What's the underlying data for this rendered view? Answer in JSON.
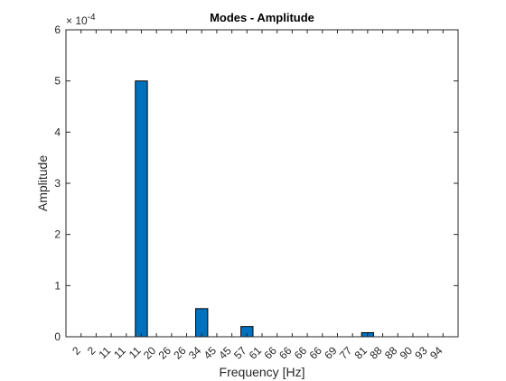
{
  "chart_data": {
    "type": "bar",
    "title": "Modes - Amplitude",
    "xlabel": "Frequency [Hz]",
    "ylabel": "Amplitude",
    "exponent_label": "× 10",
    "exponent_power": "-4",
    "ylim": [
      0,
      6
    ],
    "yticks": [
      "0",
      "1",
      "2",
      "3",
      "4",
      "5",
      "6"
    ],
    "categories": [
      "2",
      "2",
      "11",
      "11",
      "11",
      "20",
      "26",
      "26",
      "34",
      "45",
      "45",
      "57",
      "61",
      "66",
      "66",
      "66",
      "66",
      "69",
      "77",
      "81",
      "88",
      "88",
      "90",
      "93",
      "94"
    ],
    "values": [
      0,
      0,
      0,
      0,
      5.0,
      0,
      0,
      0,
      0.55,
      0,
      0,
      0.2,
      0,
      0,
      0,
      0,
      0,
      0,
      0,
      0.08,
      0,
      0,
      0,
      0,
      0
    ],
    "bar_color": "#0072bd",
    "grid": false
  }
}
